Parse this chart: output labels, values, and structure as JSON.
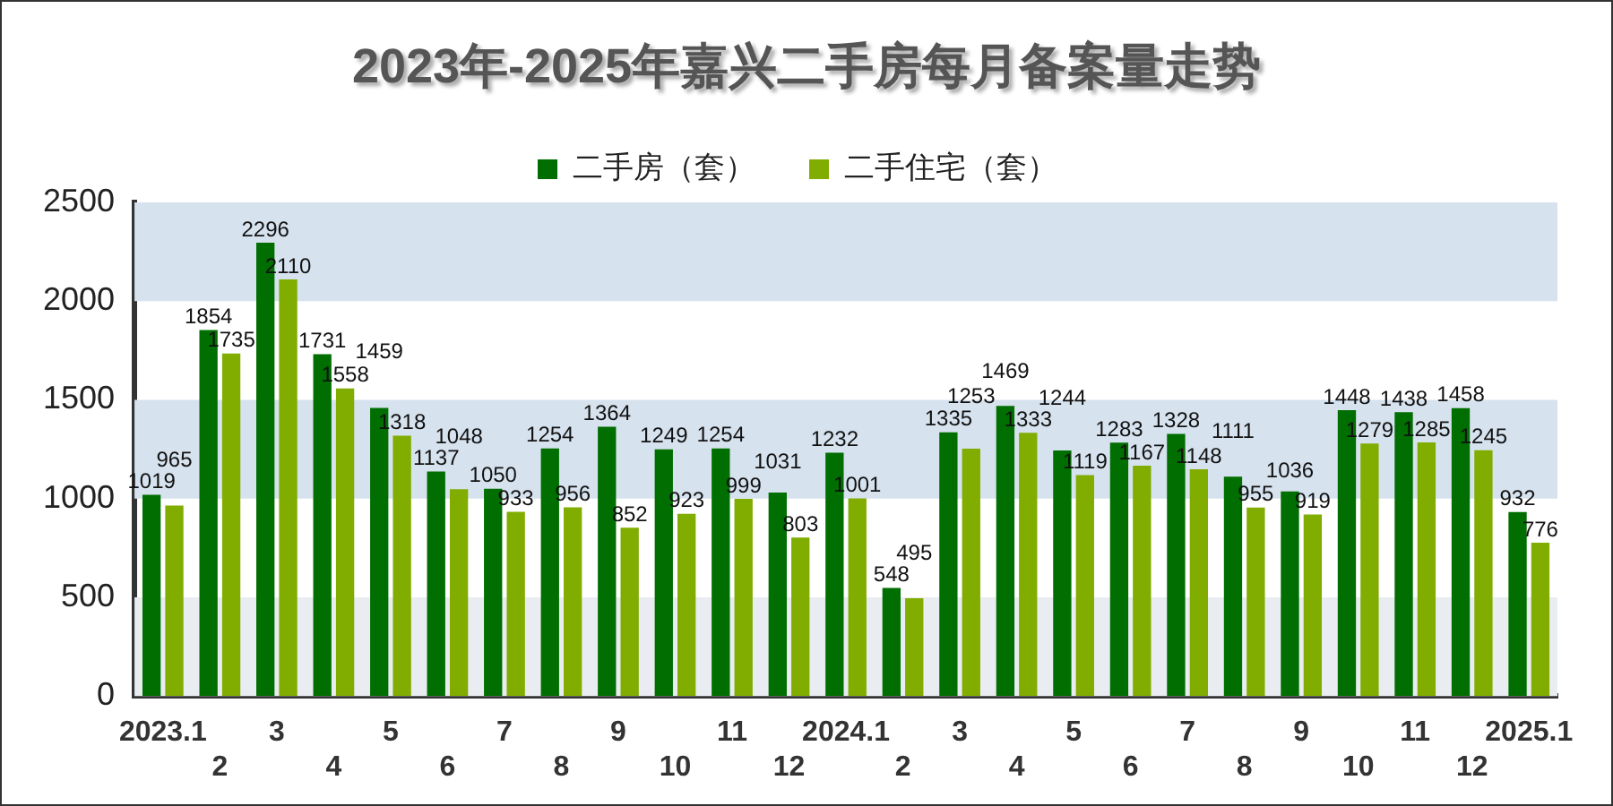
{
  "chart_data": {
    "type": "bar",
    "title": "2023年-2025年嘉兴二手房每月备案量走势",
    "categories": [
      "2023.1",
      "2",
      "3",
      "4",
      "5",
      "6",
      "7",
      "8",
      "9",
      "10",
      "11",
      "12",
      "2024.1",
      "2",
      "3",
      "4",
      "5",
      "6",
      "7",
      "8",
      "9",
      "10",
      "11",
      "12",
      "2025.1"
    ],
    "series": [
      {
        "name": "二手房（套）",
        "color": "#006e00",
        "values": [
          1019,
          1854,
          2296,
          1731,
          1459,
          1137,
          1050,
          1254,
          1364,
          1249,
          1254,
          1031,
          1232,
          548,
          1335,
          1469,
          1244,
          1283,
          1328,
          1111,
          1036,
          1448,
          1438,
          1458,
          932
        ]
      },
      {
        "name": "二手住宅（套）",
        "color": "#80ad00",
        "values": [
          965,
          1735,
          2110,
          1558,
          1318,
          1048,
          933,
          956,
          852,
          923,
          999,
          803,
          1001,
          495,
          1253,
          1333,
          1119,
          1167,
          1148,
          955,
          919,
          1279,
          1285,
          1245,
          776
        ]
      }
    ],
    "ylim": [
      0,
      2500
    ],
    "yticks": [
      0,
      500,
      1000,
      1500,
      2000,
      2500
    ],
    "legend": "top",
    "data_labels": true,
    "bands": [
      {
        "axis": "y",
        "from": 0,
        "to": 500,
        "color": "#e9edf2"
      },
      {
        "axis": "y",
        "from": 1000,
        "to": 1500,
        "color": "#d6e2ee"
      },
      {
        "axis": "y",
        "from": 2000,
        "to": 2500,
        "color": "#d6e2ee"
      }
    ]
  }
}
